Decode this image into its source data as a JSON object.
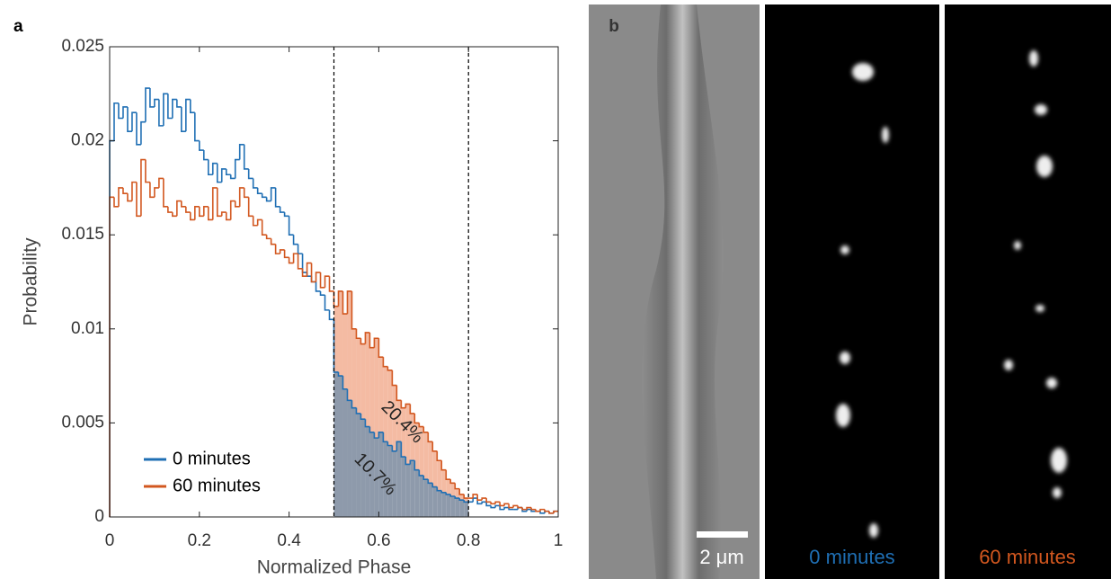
{
  "chart_data": {
    "type": "histogram",
    "panel_label": "a",
    "xlabel": "Normalized Phase",
    "ylabel": "Probability",
    "bins": [
      0,
      0.01,
      0.02,
      0.03,
      0.04,
      0.05,
      0.06,
      0.07,
      0.08,
      0.09,
      0.1,
      0.11,
      0.12,
      0.13,
      0.14,
      0.15,
      0.16,
      0.17,
      0.18,
      0.19,
      0.2,
      0.21,
      0.22,
      0.23,
      0.24,
      0.25,
      0.26,
      0.27,
      0.28,
      0.29,
      0.3,
      0.31,
      0.32,
      0.33,
      0.34,
      0.35,
      0.36,
      0.37,
      0.38,
      0.39,
      0.4,
      0.41,
      0.42,
      0.43,
      0.44,
      0.45,
      0.46,
      0.47,
      0.48,
      0.49,
      0.5,
      0.51,
      0.52,
      0.53,
      0.54,
      0.55,
      0.56,
      0.57,
      0.58,
      0.59,
      0.6,
      0.61,
      0.62,
      0.63,
      0.64,
      0.65,
      0.66,
      0.67,
      0.68,
      0.69,
      0.7,
      0.71,
      0.72,
      0.73,
      0.74,
      0.75,
      0.76,
      0.77,
      0.78,
      0.79,
      0.8,
      0.81,
      0.82,
      0.83,
      0.84,
      0.85,
      0.86,
      0.87,
      0.88,
      0.89,
      0.9,
      0.91,
      0.92,
      0.93,
      0.94,
      0.95,
      0.96,
      0.97,
      0.98,
      0.99,
      1
    ],
    "series": [
      {
        "name": "0 minutes",
        "color": "#1f6fb4",
        "shade_color": "#8e9aab",
        "values": [
          0.02,
          0.022,
          0.0212,
          0.0218,
          0.0205,
          0.0215,
          0.0198,
          0.021,
          0.0228,
          0.0218,
          0.0222,
          0.0208,
          0.0225,
          0.0212,
          0.0222,
          0.0218,
          0.0205,
          0.0222,
          0.0215,
          0.02,
          0.0195,
          0.019,
          0.0182,
          0.0188,
          0.0178,
          0.0185,
          0.0182,
          0.018,
          0.019,
          0.0198,
          0.0185,
          0.018,
          0.0175,
          0.0172,
          0.017,
          0.0168,
          0.0175,
          0.0165,
          0.0162,
          0.016,
          0.015,
          0.0145,
          0.014,
          0.013,
          0.0128,
          0.0125,
          0.012,
          0.0118,
          0.011,
          0.0105,
          0.0077,
          0.0075,
          0.0068,
          0.0062,
          0.0058,
          0.0055,
          0.0052,
          0.0048,
          0.0045,
          0.0042,
          0.0045,
          0.004,
          0.0038,
          0.0035,
          0.004,
          0.0032,
          0.0028,
          0.003,
          0.0025,
          0.0022,
          0.002,
          0.0018,
          0.0016,
          0.0014,
          0.0013,
          0.0012,
          0.0011,
          0.001,
          0.0009,
          0.0008,
          0.0008,
          0.001,
          0.0007,
          0.0008,
          0.0006,
          0.0005,
          0.0006,
          0.0004,
          0.0005,
          0.0004,
          0.0004,
          0.0005,
          0.0003,
          0.0004,
          0.0003,
          0.0003,
          0.0002,
          0.0003,
          0.0002,
          0.0003
        ]
      },
      {
        "name": "60 minutes",
        "color": "#d2571f",
        "shade_color": "#f4bba3",
        "values": [
          0.017,
          0.0165,
          0.0175,
          0.0172,
          0.0168,
          0.0178,
          0.016,
          0.019,
          0.0178,
          0.017,
          0.0175,
          0.018,
          0.0165,
          0.0162,
          0.016,
          0.0168,
          0.0165,
          0.0162,
          0.0158,
          0.0165,
          0.016,
          0.0165,
          0.0158,
          0.0175,
          0.016,
          0.0162,
          0.0158,
          0.0168,
          0.0165,
          0.0175,
          0.017,
          0.016,
          0.0155,
          0.0158,
          0.015,
          0.0148,
          0.0145,
          0.014,
          0.0142,
          0.0138,
          0.0135,
          0.014,
          0.0132,
          0.0128,
          0.0135,
          0.0125,
          0.013,
          0.0122,
          0.0128,
          0.012,
          0.0112,
          0.012,
          0.0108,
          0.012,
          0.01,
          0.0095,
          0.0092,
          0.0098,
          0.009,
          0.0095,
          0.0085,
          0.008,
          0.0078,
          0.007,
          0.0062,
          0.0058,
          0.006,
          0.0055,
          0.005,
          0.0048,
          0.0045,
          0.004,
          0.0035,
          0.003,
          0.0025,
          0.002,
          0.0018,
          0.0015,
          0.0012,
          0.001,
          0.001,
          0.0012,
          0.0009,
          0.001,
          0.0008,
          0.0007,
          0.0008,
          0.0006,
          0.0007,
          0.0005,
          0.0006,
          0.0005,
          0.0004,
          0.0005,
          0.0004,
          0.0003,
          0.0004,
          0.0003,
          0.0002,
          0.0003
        ]
      }
    ],
    "xlim": [
      0,
      1
    ],
    "ylim": [
      0,
      0.025
    ],
    "xticks": [
      0,
      0.2,
      0.4,
      0.6,
      0.8,
      1
    ],
    "yticks": [
      0,
      0.005,
      0.01,
      0.015,
      0.02,
      0.025
    ],
    "vlines": [
      0.5,
      0.8
    ],
    "annotations": [
      "20.4%",
      "10.7%"
    ],
    "legend": "lower left"
  },
  "images": {
    "panel_label": "b",
    "scale_bar": "2 μm",
    "captions": [
      "0 minutes",
      "60 minutes"
    ],
    "caption_colors": [
      "#1f6fb4",
      "#d2571f"
    ]
  }
}
